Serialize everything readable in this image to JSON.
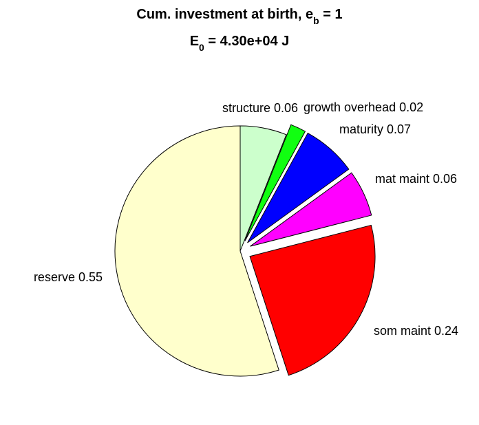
{
  "chart_data": {
    "type": "pie",
    "title": {
      "line1_main": "Cum. investment at birth, e",
      "line1_sub": "b",
      "line1_tail": " = 1",
      "line2_main": "E",
      "line2_sub": "0",
      "line2_tail": " = 4.30e+04 J"
    },
    "slices": [
      {
        "label": "structure 0.06",
        "value": 0.06,
        "color": "#CCFFCC",
        "exploded": false
      },
      {
        "label": "growth overhead 0.02",
        "value": 0.02,
        "color": "#11FF11",
        "exploded": true
      },
      {
        "label": "maturity 0.07",
        "value": 0.07,
        "color": "#0000FF",
        "exploded": true
      },
      {
        "label": "mat maint 0.06",
        "value": 0.06,
        "color": "#FF00FF",
        "exploded": true
      },
      {
        "label": "som maint 0.24",
        "value": 0.24,
        "color": "#FF0000",
        "exploded": true
      },
      {
        "label": "reserve 0.55",
        "value": 0.55,
        "color": "#FFFFCC",
        "exploded": false
      }
    ],
    "direction": "clockwise",
    "start_angle": "12 o'clock"
  }
}
